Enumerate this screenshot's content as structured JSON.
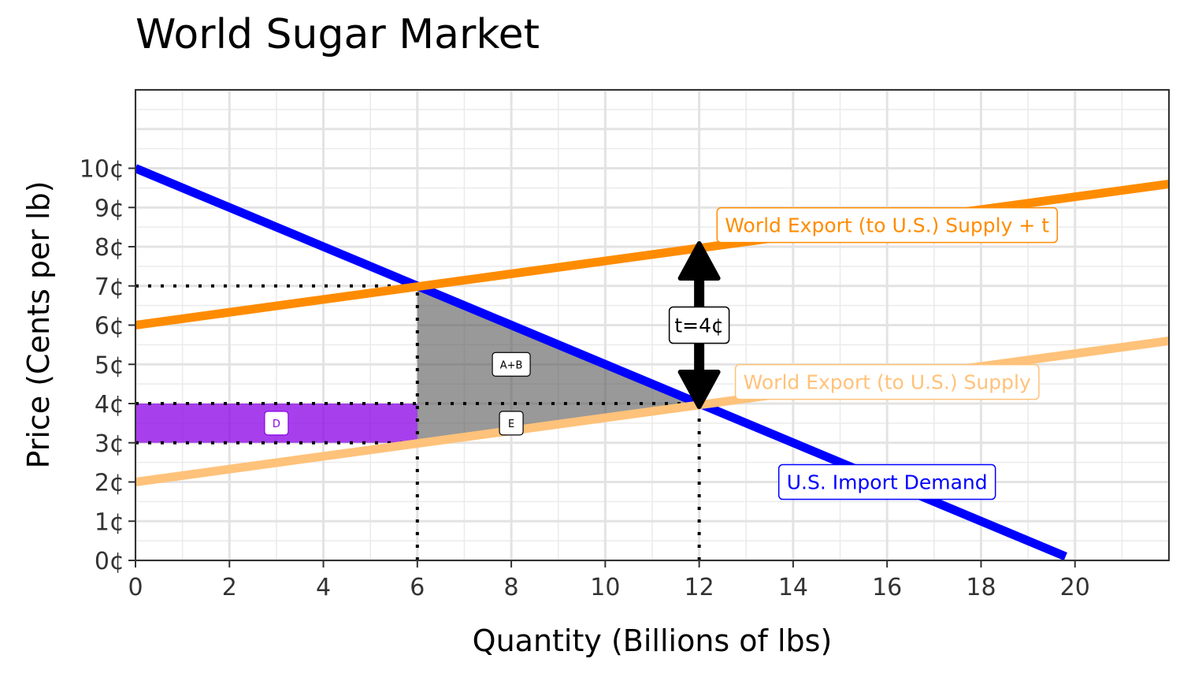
{
  "chart_data": {
    "type": "line",
    "title": "World Sugar Market",
    "xlabel": "Quantity (Billions of lbs)",
    "ylabel": "Price (Cents per lb)",
    "xlim": [
      0,
      22
    ],
    "ylim": [
      0,
      12
    ],
    "x_ticks": [
      0,
      2,
      4,
      6,
      8,
      10,
      12,
      14,
      16,
      18,
      20
    ],
    "y_ticks": [
      0,
      1,
      2,
      3,
      4,
      5,
      6,
      7,
      8,
      9,
      10
    ],
    "y_tick_labels": [
      "0¢",
      "1¢",
      "2¢",
      "3¢",
      "4¢",
      "5¢",
      "6¢",
      "7¢",
      "8¢",
      "9¢",
      "10¢"
    ],
    "grid": true,
    "series": [
      {
        "name": "U.S. Import Demand",
        "color": "#0000ff",
        "x": [
          0,
          19.8
        ],
        "y": [
          10,
          0.1
        ]
      },
      {
        "name": "World Export (to U.S.) Supply + t",
        "color": "#ff8c00",
        "x": [
          0,
          22
        ],
        "y": [
          6,
          9.6
        ]
      },
      {
        "name": "World Export (to U.S.) Supply",
        "color": "#ffc27a",
        "x": [
          0,
          22
        ],
        "y": [
          2,
          5.6
        ]
      }
    ],
    "series_labels": [
      {
        "series": 0,
        "text": "U.S. Import Demand",
        "x": 16,
        "y": 2
      },
      {
        "series": 1,
        "text": "World Export (to U.S.) Supply + t",
        "x": 16,
        "y": 8.55
      },
      {
        "series": 2,
        "text": "World Export (to U.S.) Supply",
        "x": 16,
        "y": 4.55
      }
    ],
    "areas": [
      {
        "label": "D",
        "color": "#8a00e6",
        "label_color": "#8a00e6",
        "points": [
          [
            0,
            4
          ],
          [
            6,
            4
          ],
          [
            6,
            3
          ],
          [
            0,
            3
          ]
        ],
        "label_at": [
          3,
          3.5
        ]
      },
      {
        "label": "A+B",
        "color": "#555555",
        "label_color": "#000000",
        "points": [
          [
            6,
            7
          ],
          [
            12,
            4
          ],
          [
            6,
            4
          ]
        ],
        "label_at": [
          8,
          5
        ]
      },
      {
        "label": "E",
        "color": "#555555",
        "label_color": "#000000",
        "points": [
          [
            6,
            4
          ],
          [
            12,
            4
          ],
          [
            6,
            3
          ]
        ],
        "label_at": [
          8,
          3.5
        ]
      }
    ],
    "reference_lines": [
      {
        "from": [
          0,
          7
        ],
        "to": [
          6,
          7
        ]
      },
      {
        "from": [
          0,
          4
        ],
        "to": [
          12,
          4
        ]
      },
      {
        "from": [
          0,
          3
        ],
        "to": [
          6,
          3
        ]
      },
      {
        "from": [
          6,
          0
        ],
        "to": [
          6,
          7
        ]
      },
      {
        "from": [
          12,
          0
        ],
        "to": [
          12,
          4
        ]
      }
    ],
    "annotation": {
      "text": "t=4¢",
      "x": 12,
      "y_from": 4,
      "y_to": 8,
      "label_y": 6
    }
  }
}
